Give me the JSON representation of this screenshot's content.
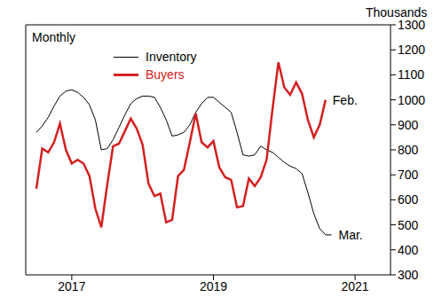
{
  "chart_data": {
    "type": "line",
    "x": [
      2017,
      2017.083,
      2017.167,
      2017.25,
      2017.333,
      2017.417,
      2017.5,
      2017.583,
      2017.667,
      2017.75,
      2017.833,
      2017.917,
      2018,
      2018.083,
      2018.167,
      2018.25,
      2018.333,
      2018.417,
      2018.5,
      2018.583,
      2018.667,
      2018.75,
      2018.833,
      2018.917,
      2019,
      2019.083,
      2019.167,
      2019.25,
      2019.333,
      2019.417,
      2019.5,
      2019.583,
      2019.667,
      2019.75,
      2019.833,
      2019.917,
      2020,
      2020.083,
      2020.167,
      2020.25,
      2020.333,
      2020.417,
      2020.5,
      2020.583,
      2020.667,
      2020.75,
      2020.833,
      2020.917,
      2021,
      2021.083,
      2021.167
    ],
    "series": [
      {
        "name": "Inventory",
        "color": "#000000",
        "values": [
          870,
          895,
          930,
          975,
          1015,
          1035,
          1040,
          1030,
          1010,
          980,
          920,
          800,
          805,
          840,
          890,
          940,
          985,
          1005,
          1015,
          1015,
          1010,
          970,
          920,
          855,
          860,
          870,
          900,
          950,
          985,
          1010,
          1010,
          990,
          970,
          950,
          870,
          780,
          775,
          780,
          815,
          800,
          790,
          770,
          750,
          735,
          725,
          705,
          630,
          545,
          485,
          460,
          460
        ]
      },
      {
        "name": "Buyers",
        "color": "#d42020",
        "values": [
          645,
          805,
          790,
          830,
          905,
          800,
          745,
          760,
          745,
          695,
          565,
          490,
          660,
          815,
          825,
          875,
          925,
          885,
          820,
          665,
          615,
          625,
          510,
          520,
          695,
          720,
          830,
          945,
          830,
          810,
          835,
          730,
          690,
          680,
          570,
          575,
          685,
          655,
          690,
          760,
          960,
          1150,
          1050,
          1020,
          1070,
          1025,
          920,
          850,
          900,
          1000,
          null
        ]
      }
    ],
    "annotations": [
      {
        "text": "Monthly"
      },
      {
        "text": "Thousands"
      },
      {
        "text": "Feb.",
        "series": "Buyers"
      },
      {
        "text": "Mar.",
        "series": "Inventory"
      }
    ],
    "xlim": [
      2016.85,
      2022.0
    ],
    "xticks": [
      {
        "value": 2017.5,
        "label": "2017"
      },
      {
        "value": 2019.5,
        "label": "2019"
      },
      {
        "value": 2021.5,
        "label": "2021"
      }
    ],
    "ylim": [
      300,
      1300
    ],
    "yticks": [
      300,
      400,
      500,
      600,
      700,
      800,
      900,
      1000,
      1100,
      1200,
      1300
    ],
    "legend": "top",
    "grid": false
  }
}
